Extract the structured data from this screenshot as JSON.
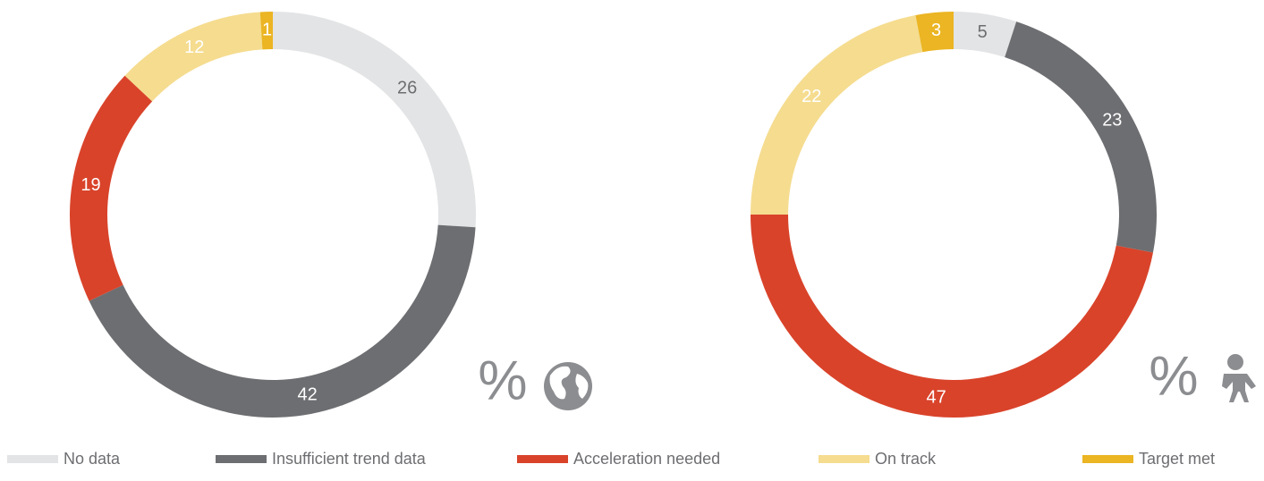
{
  "chart_data": [
    {
      "type": "donut",
      "annotation": "%",
      "categories": [
        "No data",
        "Insufficient trend data",
        "Acceleration needed",
        "On track",
        "Target met"
      ],
      "values": [
        26,
        42,
        19,
        12,
        1
      ],
      "colors": [
        "#e3e4e5",
        "#6d6e71",
        "#d9432a",
        "#f5dc8f",
        "#ebb523"
      ]
    },
    {
      "type": "donut",
      "annotation": "%",
      "categories": [
        "No data",
        "Insufficient trend data",
        "Acceleration needed",
        "On track",
        "Target met"
      ],
      "values": [
        5,
        23,
        47,
        22,
        3
      ],
      "colors": [
        "#e3e4e5",
        "#6d6e71",
        "#d9432a",
        "#f5dc8f",
        "#ebb523"
      ]
    }
  ]
}
